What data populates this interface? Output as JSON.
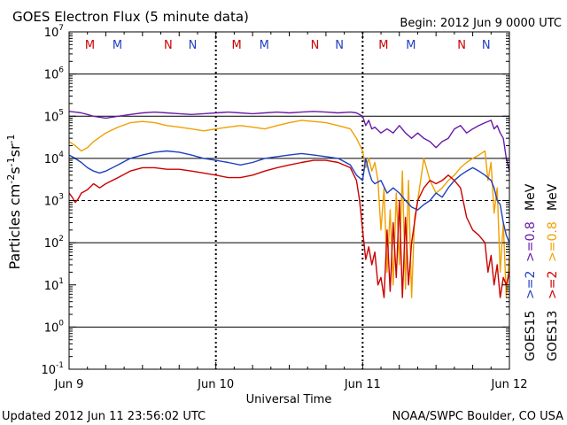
{
  "title": "GOES Electron Flux (5 minute data)",
  "begin_label": "Begin: 2012 Jun 9 0000 UTC",
  "updated_label": "Updated 2012 Jun 11 23:56:02 UTC",
  "credit_label": "NOAA/SWPC Boulder, CO USA",
  "chart_data": {
    "type": "line",
    "title": "GOES Electron Flux (5 minute data)",
    "xlabel": "Universal Time",
    "ylabel": "Particles cm-2s-1sr-1",
    "y_scale": "log",
    "ylim": [
      0.1,
      10000000
    ],
    "xlim": [
      0,
      72
    ],
    "x_unit": "hours since 2012 Jun 9 0000 UTC",
    "x_ticks": [
      {
        "x": 0,
        "label": "Jun 9"
      },
      {
        "x": 24,
        "label": "Jun 10"
      },
      {
        "x": 48,
        "label": "Jun 11"
      },
      {
        "x": 72,
        "label": "Jun 12"
      }
    ],
    "y_ticks": [
      {
        "value": 0.1,
        "base": "10",
        "exp": "-1"
      },
      {
        "value": 1,
        "base": "10",
        "exp": "0"
      },
      {
        "value": 10,
        "base": "10",
        "exp": "1"
      },
      {
        "value": 100,
        "base": "10",
        "exp": "2"
      },
      {
        "value": 1000,
        "base": "10",
        "exp": "3"
      },
      {
        "value": 10000,
        "base": "10",
        "exp": "4"
      },
      {
        "value": 100000,
        "base": "10",
        "exp": "5"
      },
      {
        "value": 1000000,
        "base": "10",
        "exp": "6"
      },
      {
        "value": 10000000,
        "base": "10",
        "exp": "7"
      }
    ],
    "grid_solid": [
      1,
      100,
      10000,
      100000,
      1000000
    ],
    "grid_dashed": [
      1000
    ],
    "day_boundaries": [
      24,
      48
    ],
    "mnn_markers": [
      {
        "x": 3.4,
        "label": "M",
        "color": "#cc0000"
      },
      {
        "x": 7.9,
        "label": "M",
        "color": "#1f3fbf"
      },
      {
        "x": 16.2,
        "label": "N",
        "color": "#cc0000"
      },
      {
        "x": 20.2,
        "label": "N",
        "color": "#1f3fbf"
      },
      {
        "x": 27.4,
        "label": "M",
        "color": "#cc0000"
      },
      {
        "x": 31.9,
        "label": "M",
        "color": "#1f3fbf"
      },
      {
        "x": 40.2,
        "label": "N",
        "color": "#cc0000"
      },
      {
        "x": 44.2,
        "label": "N",
        "color": "#1f3fbf"
      },
      {
        "x": 51.4,
        "label": "M",
        "color": "#cc0000"
      },
      {
        "x": 55.9,
        "label": "M",
        "color": "#1f3fbf"
      },
      {
        "x": 64.2,
        "label": "N",
        "color": "#cc0000"
      },
      {
        "x": 68.2,
        "label": "N",
        "color": "#1f3fbf"
      }
    ],
    "legend": [
      {
        "label": "GOES15",
        "color": "#000000"
      },
      {
        "label": ">=2",
        "color": "#1f3fbf"
      },
      {
        "label": ">=0.8",
        "color": "#6a1aa8"
      },
      {
        "label": "MeV",
        "color": "#000000"
      },
      {
        "label": "GOES13",
        "color": "#000000"
      },
      {
        "label": ">=2",
        "color": "#cc0000"
      },
      {
        "label": ">=0.8",
        "color": "#f0a000"
      },
      {
        "label": "MeV",
        "color": "#000000"
      }
    ],
    "series": [
      {
        "name": "GOES15 >=0.8 MeV",
        "color": "#6a1aa8",
        "x": [
          0,
          1,
          2,
          3,
          4,
          6,
          8,
          10,
          12,
          14,
          16,
          18,
          20,
          22,
          24,
          26,
          28,
          30,
          32,
          34,
          36,
          38,
          40,
          42,
          44,
          46,
          47,
          48,
          48.5,
          49,
          49.5,
          50,
          51,
          52,
          53,
          54,
          55,
          56,
          57,
          58,
          59,
          60,
          61,
          62,
          63,
          64,
          65,
          66,
          67,
          68,
          69,
          69.5,
          70,
          70.5,
          71,
          71.5,
          72
        ],
        "y": [
          130000,
          125000,
          120000,
          110000,
          100000,
          90000,
          100000,
          110000,
          120000,
          125000,
          120000,
          115000,
          110000,
          115000,
          120000,
          125000,
          120000,
          115000,
          120000,
          125000,
          120000,
          125000,
          130000,
          125000,
          120000,
          125000,
          120000,
          100000,
          60000,
          80000,
          50000,
          55000,
          40000,
          50000,
          40000,
          60000,
          40000,
          30000,
          40000,
          30000,
          25000,
          18000,
          25000,
          30000,
          50000,
          60000,
          40000,
          50000,
          60000,
          70000,
          80000,
          50000,
          60000,
          40000,
          30000,
          10000,
          5000
        ]
      },
      {
        "name": "GOES13 >=0.8 MeV",
        "color": "#f0a000",
        "x": [
          0,
          1,
          2,
          3,
          4,
          6,
          8,
          10,
          12,
          14,
          16,
          18,
          20,
          22,
          24,
          26,
          28,
          30,
          32,
          34,
          36,
          38,
          40,
          42,
          44,
          46,
          47,
          48,
          48.5,
          49,
          49.5,
          50,
          50.5,
          51,
          51.5,
          52,
          52.5,
          53,
          53.5,
          54,
          54.5,
          55,
          55.5,
          56,
          56.5,
          57,
          58,
          59,
          60,
          61,
          62,
          63,
          64,
          65,
          66,
          67,
          68,
          68.5,
          69,
          69.5,
          70,
          70.5,
          71,
          71.5,
          72
        ],
        "y": [
          25000,
          20000,
          15000,
          18000,
          25000,
          40000,
          55000,
          70000,
          75000,
          70000,
          60000,
          55000,
          50000,
          45000,
          50000,
          55000,
          60000,
          55000,
          50000,
          60000,
          70000,
          80000,
          75000,
          70000,
          60000,
          50000,
          30000,
          15000,
          6000,
          10000,
          5000,
          8000,
          3000,
          200,
          2000,
          20,
          600,
          10,
          1500,
          30,
          5000,
          8,
          3000,
          5,
          400,
          1000,
          10000,
          3000,
          1500,
          2000,
          3000,
          4000,
          6000,
          8000,
          10000,
          12000,
          15000,
          3000,
          8000,
          500,
          2000,
          20,
          300,
          5,
          50
        ]
      },
      {
        "name": "GOES15 >=2 MeV",
        "color": "#1f3fbf",
        "x": [
          0,
          1,
          2,
          3,
          4,
          5,
          6,
          8,
          10,
          12,
          14,
          16,
          18,
          20,
          22,
          24,
          26,
          28,
          30,
          32,
          34,
          36,
          38,
          40,
          42,
          44,
          46,
          47,
          48,
          48.5,
          49,
          49.5,
          50,
          51,
          52,
          53,
          54,
          55,
          56,
          57,
          58,
          59,
          60,
          61,
          62,
          63,
          64,
          65,
          66,
          67,
          68,
          69,
          69.5,
          70,
          70.5,
          71,
          71.5,
          72
        ],
        "y": [
          12000,
          10000,
          8000,
          6000,
          5000,
          4500,
          5000,
          7000,
          10000,
          12000,
          14000,
          15000,
          14000,
          12000,
          10000,
          9000,
          8000,
          7000,
          8000,
          10000,
          11000,
          12000,
          13000,
          12000,
          11000,
          10000,
          7000,
          4000,
          3000,
          10000,
          5000,
          3000,
          2500,
          3000,
          1500,
          2000,
          1500,
          1000,
          700,
          600,
          800,
          1000,
          1500,
          1200,
          2000,
          3000,
          4000,
          5000,
          6000,
          5000,
          4000,
          3000,
          2000,
          1000,
          800,
          300,
          150,
          100
        ]
      },
      {
        "name": "GOES13 >=2 MeV",
        "color": "#cc0000",
        "x": [
          0,
          0.5,
          1,
          1.5,
          2,
          3,
          4,
          5,
          6,
          8,
          10,
          12,
          14,
          16,
          18,
          20,
          22,
          24,
          26,
          28,
          30,
          32,
          34,
          36,
          38,
          40,
          42,
          44,
          46,
          47,
          47.5,
          48,
          48.5,
          49,
          49.5,
          50,
          50.5,
          51,
          51.5,
          52,
          52.5,
          53,
          53.5,
          54,
          54.5,
          55,
          55.5,
          56,
          57,
          58,
          59,
          60,
          61,
          62,
          63,
          64,
          65,
          66,
          67,
          68,
          68.5,
          69,
          69.5,
          70,
          70.5,
          71,
          71.5,
          72
        ],
        "y": [
          1500,
          1200,
          900,
          1100,
          1500,
          1800,
          2500,
          2000,
          2500,
          3500,
          5000,
          6000,
          6000,
          5500,
          5500,
          5000,
          4500,
          4000,
          3500,
          3500,
          4000,
          5000,
          6000,
          7000,
          8000,
          9000,
          9000,
          8000,
          6000,
          3000,
          1000,
          200,
          40,
          80,
          30,
          60,
          10,
          15,
          5,
          200,
          7,
          300,
          15,
          1000,
          5,
          400,
          10,
          100,
          1000,
          2000,
          3000,
          2500,
          3000,
          4000,
          3000,
          2000,
          400,
          200,
          150,
          100,
          20,
          50,
          10,
          30,
          5,
          15,
          10,
          20
        ]
      }
    ]
  }
}
